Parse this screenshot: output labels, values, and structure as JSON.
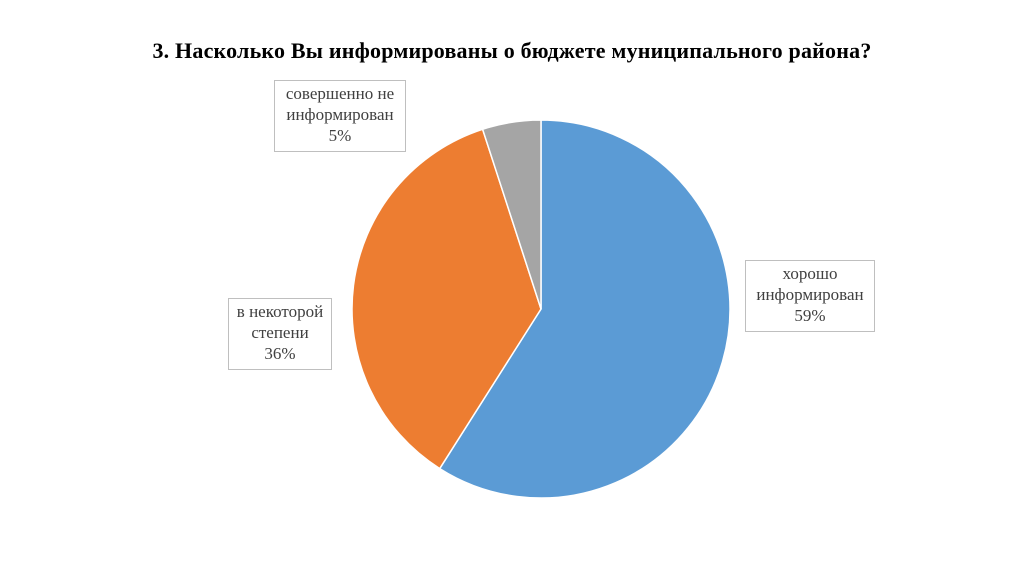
{
  "title": "3. Насколько Вы информированы о бюджете муниципального района?",
  "chart_data": {
    "type": "pie",
    "title": "3. Насколько Вы информированы о бюджете муниципального района?",
    "slices": [
      {
        "label_lines": [
          "хорошо",
          "информирован"
        ],
        "value": 59,
        "percent_label": "59%",
        "color": "#5B9BD5"
      },
      {
        "label_lines": [
          "в некоторой",
          "степени"
        ],
        "value": 36,
        "percent_label": "36%",
        "color": "#ED7D31"
      },
      {
        "label_lines": [
          "совершенно не",
          "информирован"
        ],
        "value": 5,
        "percent_label": "5%",
        "color": "#A5A5A5"
      }
    ],
    "start_angle_deg": 0,
    "direction": "clockwise",
    "legend": "none",
    "data_labels": "callout boxes"
  }
}
